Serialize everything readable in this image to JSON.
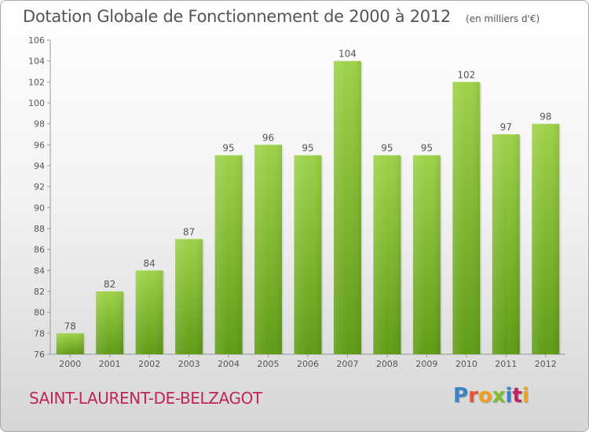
{
  "header": {
    "title": "Dotation Globale de Fonctionnement de 2000 à 2012",
    "subtitle": "(en milliers d'€)"
  },
  "footer": {
    "commune": "SAINT-LAURENT-DE-BELZAGOT",
    "logo_text": "Proxiti"
  },
  "colors": {
    "bar_top": "#9fd24a",
    "bar_bottom": "#5f9c15",
    "commune": "#c0245c",
    "text": "#555555"
  },
  "chart_data": {
    "type": "bar",
    "title": "Dotation Globale de Fonctionnement de 2000 à 2012",
    "subtitle": "(en milliers d'€)",
    "categories": [
      "2000",
      "2001",
      "2002",
      "2003",
      "2004",
      "2005",
      "2006",
      "2007",
      "2008",
      "2009",
      "2010",
      "2011",
      "2012"
    ],
    "values": [
      78,
      82,
      84,
      87,
      95,
      96,
      95,
      104,
      95,
      95,
      102,
      97,
      98
    ],
    "data_labels": [
      "78",
      "82",
      "84",
      "87",
      "95",
      "96",
      "95",
      "104",
      "95",
      "95",
      "102",
      "97",
      "98"
    ],
    "ylim": [
      76,
      106
    ],
    "yticks": [
      76,
      78,
      80,
      82,
      84,
      86,
      88,
      90,
      92,
      94,
      96,
      98,
      100,
      102,
      104,
      106
    ],
    "grid": false,
    "legend": "none"
  }
}
